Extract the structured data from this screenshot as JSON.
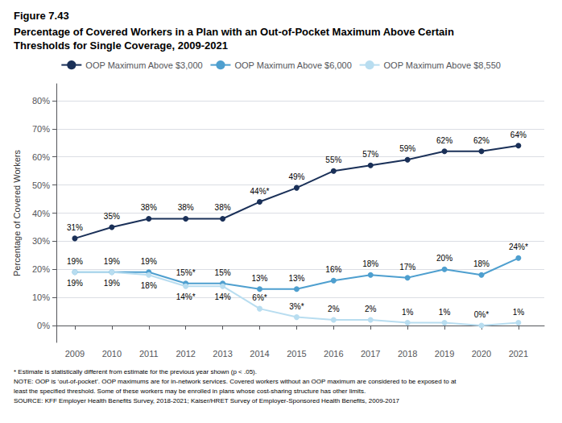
{
  "chart_data": {
    "type": "line",
    "title": "Figure 7.43",
    "subtitle": [
      "Percentage of Covered Workers in a Plan with an Out-of-Pocket Maximum Above Certain",
      "Thresholds for Single Coverage, 2009-2021"
    ],
    "notes": [
      "* Estimate is statistically different from estimate for the previous year shown (p < .05).",
      "NOTE: OOP is ‘out-of-pocket’. OOP maximums are for in-network services. Covered workers without an OOP maximum are considered to be exposed to at",
      "least the specified threshold. Some of these workers may be enrolled in plans whose cost-sharing structure has other limits.",
      "SOURCE: KFF Employer Health Benefits Survey, 2018-2021; Kaiser/HRET Survey of Employer-Sponsored Health Benefits, 2009-2017"
    ],
    "ylabel": "Percentage of Covered Workers",
    "x": [
      2009,
      2010,
      2011,
      2012,
      2013,
      2014,
      2015,
      2016,
      2017,
      2018,
      2019,
      2020,
      2021
    ],
    "xlim": [
      2008.5,
      2021.7
    ],
    "xticks": [
      2009,
      2010,
      2011,
      2012,
      2013,
      2014,
      2015,
      2016,
      2017,
      2018,
      2019,
      2020,
      2021
    ],
    "ylim": [
      -6,
      86
    ],
    "yticks": [
      {
        "value": 0,
        "label": "0%"
      },
      {
        "value": 10,
        "label": "10%"
      },
      {
        "value": 20,
        "label": "20%"
      },
      {
        "value": 30,
        "label": "30%"
      },
      {
        "value": 40,
        "label": "40%"
      },
      {
        "value": 50,
        "label": "50%"
      },
      {
        "value": 60,
        "label": "60%"
      },
      {
        "value": 70,
        "label": "70%"
      },
      {
        "value": 80,
        "label": "80%"
      }
    ],
    "grid": true,
    "legend": "top",
    "data_labels": true,
    "series": [
      {
        "name": "OOP Maximum Above $3,000",
        "color": "#1a3058",
        "marker": "circle",
        "values": [
          31,
          35,
          38,
          38,
          38,
          44,
          49,
          55,
          57,
          59,
          62,
          62,
          64
        ],
        "value_labels": [
          "31%",
          "35%",
          "38%",
          "38%",
          "38%",
          "44%*",
          "49%",
          "55%",
          "57%",
          "59%",
          "62%",
          "62%",
          "64%"
        ]
      },
      {
        "name": "OOP Maximum Above $6,000",
        "color": "#4e9fcf",
        "marker": "circle",
        "values": [
          19,
          19,
          19,
          15,
          15,
          13,
          13,
          16,
          18,
          17,
          20,
          18,
          24
        ],
        "value_labels": [
          "19%",
          "19%",
          "19%",
          "15%*",
          "15%",
          "13%",
          "13%",
          "16%",
          "18%",
          "17%",
          "20%",
          "18%",
          "24%*"
        ]
      },
      {
        "name": "OOP Maximum Above $8,550",
        "color": "#b8ddf0",
        "marker": "circle",
        "values": [
          19,
          19,
          18,
          14,
          14,
          6,
          3,
          2,
          2,
          1,
          1,
          0,
          1
        ],
        "value_labels": [
          "19%",
          "19%",
          "18%",
          "14%*",
          "14%",
          "6%*",
          "3%*",
          "2%",
          "2%",
          "1%",
          "1%",
          "0%*",
          "1%"
        ]
      }
    ]
  }
}
